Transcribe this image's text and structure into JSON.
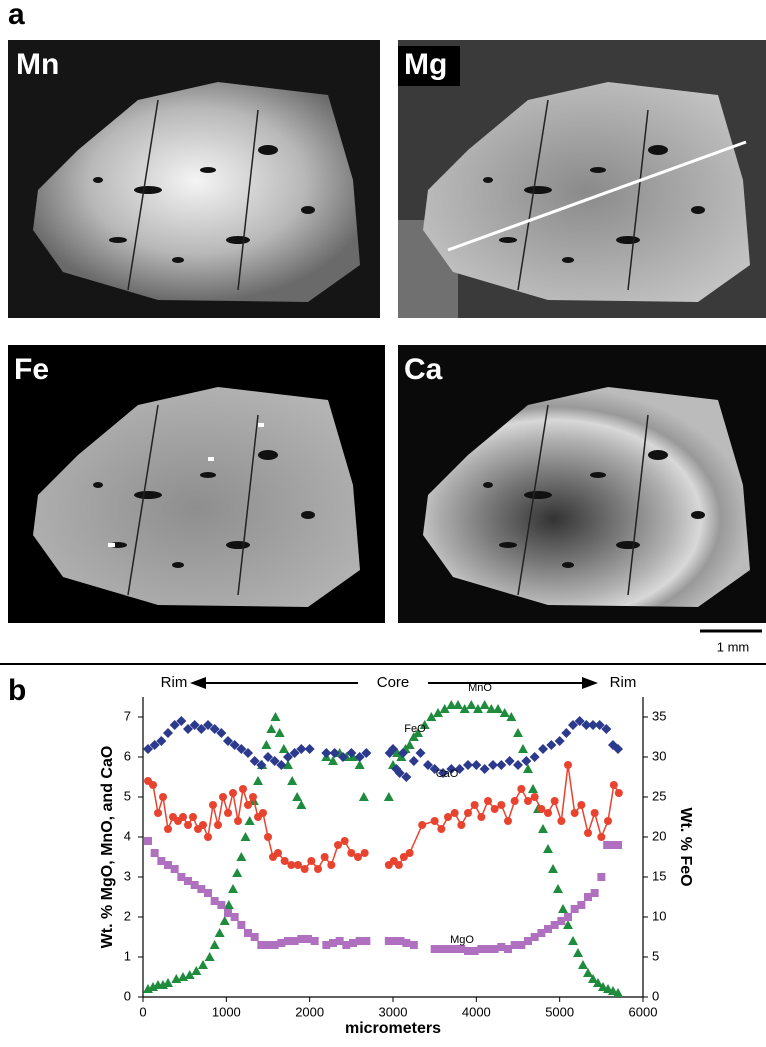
{
  "panel_a": {
    "label": "a",
    "maps": [
      "Mn",
      "Mg",
      "Fe",
      "Ca"
    ],
    "scale_bar": "1 mm"
  },
  "chart_data": {
    "type": "scatter",
    "panel_label": "b",
    "annotations": [
      "Rim",
      "Core",
      "Rim"
    ],
    "xlabel": "micrometers",
    "ylabel": "Wt. % MgO, MnO, and CaO",
    "y2label": "Wt. % FeO",
    "xlim": [
      0,
      6000
    ],
    "xticks": [
      0,
      1000,
      2000,
      3000,
      4000,
      5000,
      6000
    ],
    "ylim": [
      0,
      7.5
    ],
    "yticks": [
      0,
      1,
      2,
      3,
      4,
      5,
      6,
      7
    ],
    "y2lim": [
      0,
      37.5
    ],
    "y2ticks": [
      0,
      5,
      10,
      15,
      20,
      25,
      30,
      35
    ],
    "series": [
      {
        "name": "MnO",
        "color": "#1e8c3c",
        "marker": "triangle",
        "x": [
          60,
          120,
          180,
          240,
          300,
          400,
          480,
          560,
          640,
          720,
          800,
          860,
          920,
          980,
          1030,
          1080,
          1130,
          1180,
          1230,
          1280,
          1330,
          1380,
          1430,
          1480,
          1540,
          1590,
          1640,
          1690,
          1740,
          1790,
          1850,
          1900,
          2200,
          2280,
          2360,
          2440,
          2520,
          2600,
          2650,
          2950,
          3000,
          3050,
          3100,
          3150,
          3200,
          3250,
          3300,
          3380,
          3460,
          3540,
          3620,
          3700,
          3780,
          3860,
          3940,
          4020,
          4100,
          4180,
          4260,
          4340,
          4420,
          4500,
          4560,
          4620,
          4680,
          4740,
          4800,
          4860,
          4920,
          4980,
          5040,
          5100,
          5160,
          5220,
          5280,
          5340,
          5400,
          5460,
          5520,
          5580,
          5640,
          5700
        ],
        "values": [
          0.2,
          0.25,
          0.3,
          0.3,
          0.35,
          0.45,
          0.5,
          0.55,
          0.65,
          0.8,
          1.0,
          1.3,
          1.6,
          1.9,
          2.3,
          2.7,
          3.1,
          3.5,
          4.0,
          4.4,
          4.9,
          5.4,
          5.8,
          6.3,
          6.7,
          7.0,
          6.6,
          6.2,
          5.8,
          5.4,
          5.0,
          4.8,
          6.0,
          5.9,
          6.1,
          6.0,
          6.0,
          5.8,
          5.0,
          5.0,
          5.8,
          6.1,
          6.0,
          6.2,
          6.3,
          6.5,
          6.6,
          6.8,
          7.0,
          7.1,
          7.2,
          7.3,
          7.3,
          7.2,
          7.3,
          7.2,
          7.3,
          7.2,
          7.2,
          7.1,
          7.0,
          6.6,
          6.2,
          5.7,
          5.2,
          4.7,
          4.2,
          3.7,
          3.2,
          2.7,
          2.2,
          1.8,
          1.4,
          1.1,
          0.8,
          0.6,
          0.45,
          0.35,
          0.25,
          0.2,
          0.15,
          0.1
        ]
      },
      {
        "name": "FeO",
        "color": "#2b3a8c",
        "marker": "diamond",
        "axis": "y2",
        "x": [
          60,
          140,
          220,
          300,
          380,
          460,
          540,
          620,
          700,
          780,
          860,
          940,
          1020,
          1100,
          1180,
          1260,
          1340,
          1420,
          1500,
          1580,
          1660,
          1740,
          1820,
          1900,
          2000,
          2200,
          2300,
          2400,
          2500,
          2600,
          2680,
          2960,
          3000,
          3040,
          3080,
          3120,
          3160,
          3250,
          3330,
          3420,
          3500,
          3600,
          3700,
          3800,
          3900,
          4000,
          4100,
          4200,
          4300,
          4400,
          4500,
          4600,
          4700,
          4800,
          4900,
          5000,
          5080,
          5160,
          5240,
          5320,
          5400,
          5480,
          5560,
          5640,
          5700
        ],
        "values": [
          31,
          31.5,
          32,
          33,
          34,
          34.5,
          33.5,
          34,
          33.5,
          34,
          33.5,
          33,
          32,
          31.5,
          31,
          30.5,
          29.5,
          29,
          30,
          29.5,
          29,
          30,
          30.5,
          31,
          31,
          30.5,
          30.5,
          30,
          30.5,
          30,
          30.5,
          30.5,
          31,
          28.5,
          28,
          30.5,
          27.5,
          29.5,
          30.5,
          29,
          28.5,
          28,
          28.5,
          28.5,
          29,
          29,
          28.5,
          29,
          29,
          29.5,
          29,
          29.5,
          30,
          31,
          31.5,
          32,
          33,
          34,
          34.5,
          34,
          34,
          34,
          33.5,
          31.5,
          31
        ]
      },
      {
        "name": "CaO",
        "color": "#e8432e",
        "marker": "circle",
        "line": true,
        "x": [
          60,
          120,
          180,
          240,
          300,
          360,
          420,
          480,
          540,
          600,
          660,
          720,
          780,
          840,
          900,
          960,
          1020,
          1080,
          1140,
          1200,
          1260,
          1320,
          1380,
          1440,
          1500,
          1560,
          1620,
          1700,
          1780,
          1860,
          1940,
          2020,
          2100,
          2180,
          2260,
          2340,
          2420,
          2500,
          2580,
          2660,
          2800,
          2950,
          3010,
          3070,
          3130,
          3200,
          3350,
          3500,
          3580,
          3660,
          3740,
          3820,
          3900,
          3980,
          4060,
          4140,
          4220,
          4300,
          4380,
          4460,
          4540,
          4620,
          4700,
          4780,
          4860,
          4940,
          5020,
          5100,
          5180,
          5260,
          5340,
          5420,
          5500,
          5580,
          5650,
          5710
        ],
        "values": [
          5.4,
          5.3,
          4.6,
          5.0,
          4.2,
          4.5,
          4.4,
          4.5,
          4.3,
          4.5,
          4.2,
          4.3,
          4.0,
          4.8,
          4.3,
          5.0,
          4.6,
          5.1,
          4.4,
          5.2,
          4.8,
          5.0,
          4.5,
          4.6,
          4.0,
          3.5,
          3.6,
          3.4,
          3.3,
          3.3,
          3.2,
          3.4,
          3.2,
          3.5,
          3.3,
          3.8,
          3.9,
          3.6,
          3.5,
          3.6,
          null,
          3.3,
          3.4,
          3.3,
          3.5,
          3.6,
          4.3,
          4.4,
          4.2,
          4.5,
          4.6,
          4.3,
          4.6,
          4.8,
          4.5,
          4.9,
          4.7,
          4.8,
          4.4,
          4.9,
          5.2,
          4.9,
          5.0,
          4.7,
          4.6,
          4.9,
          4.4,
          5.8,
          4.6,
          4.8,
          4.1,
          4.6,
          4.0,
          4.4,
          5.3,
          5.1
        ]
      },
      {
        "name": "MgO",
        "color": "#b070c0",
        "marker": "square",
        "x": [
          60,
          140,
          220,
          300,
          380,
          460,
          540,
          620,
          700,
          780,
          860,
          940,
          1020,
          1100,
          1180,
          1260,
          1340,
          1420,
          1500,
          1580,
          1660,
          1740,
          1820,
          1900,
          1980,
          2060,
          2200,
          2280,
          2360,
          2440,
          2520,
          2600,
          2680,
          2950,
          3020,
          3090,
          3160,
          3250,
          3500,
          3580,
          3660,
          3740,
          3820,
          3900,
          3980,
          4060,
          4140,
          4220,
          4300,
          4380,
          4460,
          4540,
          4620,
          4700,
          4780,
          4860,
          4940,
          5020,
          5100,
          5180,
          5260,
          5340,
          5420,
          5500,
          5570,
          5640,
          5700
        ],
        "values": [
          3.9,
          3.6,
          3.4,
          3.3,
          3.2,
          3.0,
          2.9,
          2.8,
          2.7,
          2.6,
          2.4,
          2.3,
          2.1,
          2.0,
          1.8,
          1.6,
          1.5,
          1.3,
          1.3,
          1.3,
          1.35,
          1.4,
          1.4,
          1.45,
          1.45,
          1.4,
          1.3,
          1.35,
          1.4,
          1.3,
          1.35,
          1.4,
          1.4,
          1.4,
          1.4,
          1.4,
          1.35,
          1.3,
          1.2,
          1.2,
          1.2,
          1.2,
          1.2,
          1.15,
          1.15,
          1.2,
          1.2,
          1.2,
          1.25,
          1.2,
          1.3,
          1.3,
          1.4,
          1.5,
          1.6,
          1.7,
          1.8,
          1.9,
          2.0,
          2.2,
          2.3,
          2.5,
          2.6,
          3.0,
          3.8,
          3.8,
          3.8
        ]
      }
    ]
  }
}
